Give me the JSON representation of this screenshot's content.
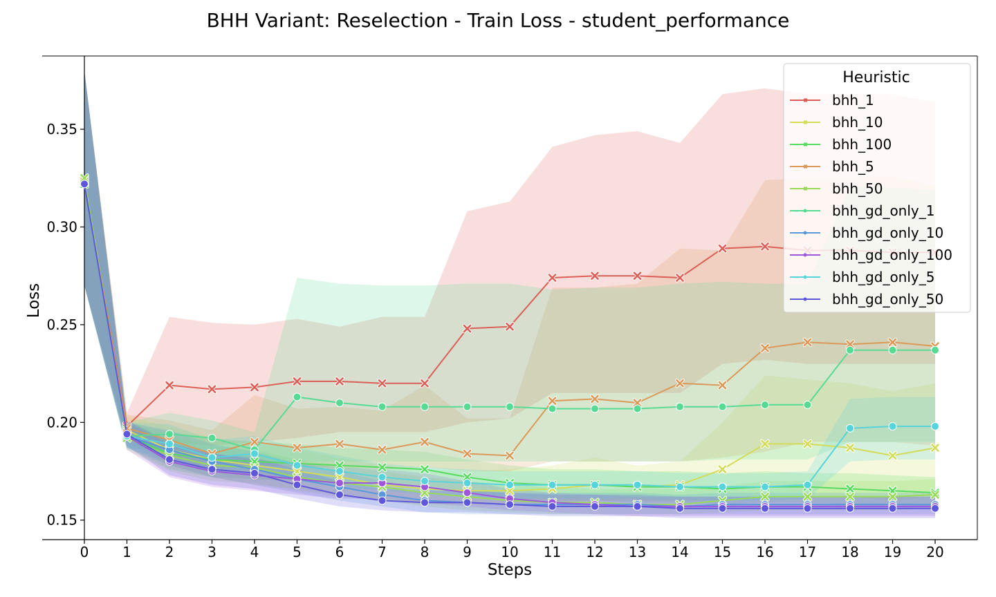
{
  "chart_data": {
    "type": "line",
    "title": "BHH Variant: Reselection - Train Loss - student_performance",
    "xlabel": "Steps",
    "ylabel": "Loss",
    "xlim": [
      -1,
      21
    ],
    "ylim": [
      0.14,
      0.3875
    ],
    "x": [
      0,
      1,
      2,
      3,
      4,
      5,
      6,
      7,
      8,
      9,
      10,
      11,
      12,
      13,
      14,
      15,
      16,
      17,
      18,
      19,
      20
    ],
    "x_ticks": [
      0,
      1,
      2,
      3,
      4,
      5,
      6,
      7,
      8,
      9,
      10,
      11,
      12,
      13,
      14,
      15,
      16,
      17,
      18,
      19,
      20
    ],
    "y_ticks": [
      0.15,
      0.2,
      0.25,
      0.3,
      0.35
    ],
    "y_tick_labels": [
      "0.15",
      "0.20",
      "0.25",
      "0.30",
      "0.35"
    ],
    "legend_title": "Heuristic",
    "legend_position": "top-right",
    "series": [
      {
        "name": "bhh_1",
        "color": "#db5f57",
        "marker": "x",
        "values": [
          0.323,
          0.198,
          0.219,
          0.217,
          0.218,
          0.221,
          0.221,
          0.22,
          0.22,
          0.248,
          0.249,
          0.274,
          0.275,
          0.275,
          0.274,
          0.289,
          0.29,
          0.288,
          0.288,
          0.287,
          0.287
        ],
        "upper": [
          0.38,
          0.205,
          0.254,
          0.251,
          0.25,
          0.253,
          0.249,
          0.254,
          0.254,
          0.308,
          0.313,
          0.341,
          0.347,
          0.349,
          0.343,
          0.368,
          0.371,
          0.368,
          0.368,
          0.368,
          0.364
        ],
        "lower": [
          0.27,
          0.192,
          0.19,
          0.188,
          0.19,
          0.192,
          0.195,
          0.195,
          0.195,
          0.2,
          0.202,
          0.215,
          0.215,
          0.215,
          0.215,
          0.23,
          0.232,
          0.23,
          0.23,
          0.23,
          0.23
        ]
      },
      {
        "name": "bhh_10",
        "color": "#d3db57",
        "marker": "x",
        "values": [
          0.324,
          0.196,
          0.186,
          0.181,
          0.178,
          0.175,
          0.172,
          0.168,
          0.166,
          0.165,
          0.165,
          0.166,
          0.168,
          0.167,
          0.168,
          0.176,
          0.189,
          0.189,
          0.187,
          0.183,
          0.187
        ],
        "upper": [
          0.38,
          0.203,
          0.198,
          0.192,
          0.189,
          0.186,
          0.182,
          0.178,
          0.176,
          0.175,
          0.176,
          0.178,
          0.182,
          0.178,
          0.18,
          0.2,
          0.224,
          0.222,
          0.22,
          0.216,
          0.22
        ],
        "lower": [
          0.27,
          0.19,
          0.178,
          0.172,
          0.168,
          0.166,
          0.163,
          0.16,
          0.158,
          0.158,
          0.158,
          0.159,
          0.16,
          0.16,
          0.16,
          0.16,
          0.162,
          0.162,
          0.162,
          0.16,
          0.162
        ]
      },
      {
        "name": "bhh_100",
        "color": "#57db5f",
        "marker": "x",
        "values": [
          0.322,
          0.193,
          0.184,
          0.181,
          0.18,
          0.179,
          0.178,
          0.177,
          0.176,
          0.172,
          0.169,
          0.168,
          0.168,
          0.167,
          0.167,
          0.166,
          0.167,
          0.167,
          0.166,
          0.165,
          0.164
        ],
        "upper": [
          0.38,
          0.2,
          0.195,
          0.192,
          0.19,
          0.189,
          0.187,
          0.186,
          0.185,
          0.181,
          0.178,
          0.176,
          0.176,
          0.175,
          0.175,
          0.174,
          0.175,
          0.174,
          0.174,
          0.173,
          0.172
        ],
        "lower": [
          0.27,
          0.187,
          0.176,
          0.172,
          0.171,
          0.17,
          0.169,
          0.168,
          0.167,
          0.164,
          0.161,
          0.16,
          0.16,
          0.159,
          0.159,
          0.158,
          0.159,
          0.159,
          0.158,
          0.158,
          0.157
        ]
      },
      {
        "name": "bhh_5",
        "color": "#db9857",
        "marker": "x",
        "values": [
          0.323,
          0.197,
          0.191,
          0.184,
          0.19,
          0.187,
          0.189,
          0.186,
          0.19,
          0.184,
          0.183,
          0.211,
          0.212,
          0.21,
          0.22,
          0.219,
          0.238,
          0.241,
          0.24,
          0.241,
          0.239
        ],
        "upper": [
          0.38,
          0.204,
          0.201,
          0.196,
          0.214,
          0.207,
          0.208,
          0.206,
          0.219,
          0.202,
          0.202,
          0.269,
          0.269,
          0.271,
          0.289,
          0.288,
          0.324,
          0.325,
          0.325,
          0.326,
          0.321
        ],
        "lower": [
          0.27,
          0.191,
          0.182,
          0.176,
          0.178,
          0.177,
          0.177,
          0.176,
          0.177,
          0.175,
          0.175,
          0.18,
          0.18,
          0.18,
          0.18,
          0.182,
          0.185,
          0.19,
          0.19,
          0.19,
          0.188
        ]
      },
      {
        "name": "bhh_50",
        "color": "#98db57",
        "marker": "x",
        "values": [
          0.325,
          0.192,
          0.183,
          0.178,
          0.177,
          0.172,
          0.169,
          0.167,
          0.164,
          0.162,
          0.16,
          0.159,
          0.159,
          0.158,
          0.158,
          0.16,
          0.162,
          0.162,
          0.162,
          0.162,
          0.163
        ],
        "upper": [
          0.38,
          0.199,
          0.193,
          0.188,
          0.186,
          0.181,
          0.178,
          0.175,
          0.172,
          0.17,
          0.168,
          0.167,
          0.166,
          0.166,
          0.166,
          0.167,
          0.17,
          0.17,
          0.17,
          0.17,
          0.171
        ],
        "lower": [
          0.27,
          0.186,
          0.175,
          0.17,
          0.169,
          0.165,
          0.162,
          0.16,
          0.157,
          0.155,
          0.154,
          0.153,
          0.153,
          0.153,
          0.153,
          0.154,
          0.155,
          0.155,
          0.155,
          0.155,
          0.156
        ]
      },
      {
        "name": "bhh_gd_only_1",
        "color": "#57db94",
        "marker": "o",
        "values": [
          0.322,
          0.193,
          0.194,
          0.192,
          0.186,
          0.213,
          0.21,
          0.208,
          0.208,
          0.208,
          0.208,
          0.207,
          0.207,
          0.207,
          0.208,
          0.208,
          0.209,
          0.209,
          0.237,
          0.237,
          0.237
        ],
        "upper": [
          0.38,
          0.2,
          0.205,
          0.201,
          0.195,
          0.274,
          0.271,
          0.27,
          0.27,
          0.271,
          0.271,
          0.268,
          0.269,
          0.269,
          0.271,
          0.272,
          0.271,
          0.271,
          0.321,
          0.32,
          0.319
        ],
        "lower": [
          0.27,
          0.187,
          0.185,
          0.183,
          0.178,
          0.18,
          0.18,
          0.18,
          0.18,
          0.18,
          0.18,
          0.18,
          0.18,
          0.18,
          0.18,
          0.181,
          0.181,
          0.181,
          0.19,
          0.19,
          0.19
        ]
      },
      {
        "name": "bhh_gd_only_10",
        "color": "#5797db",
        "marker": "o",
        "values": [
          0.322,
          0.193,
          0.186,
          0.18,
          0.176,
          0.171,
          0.167,
          0.163,
          0.16,
          0.159,
          0.158,
          0.158,
          0.158,
          0.158,
          0.157,
          0.158,
          0.158,
          0.158,
          0.158,
          0.158,
          0.158
        ],
        "upper": [
          0.38,
          0.2,
          0.196,
          0.189,
          0.185,
          0.179,
          0.175,
          0.17,
          0.166,
          0.165,
          0.164,
          0.164,
          0.164,
          0.164,
          0.163,
          0.164,
          0.164,
          0.164,
          0.164,
          0.164,
          0.164
        ],
        "lower": [
          0.27,
          0.187,
          0.178,
          0.172,
          0.168,
          0.164,
          0.16,
          0.157,
          0.154,
          0.153,
          0.153,
          0.153,
          0.153,
          0.153,
          0.153,
          0.153,
          0.153,
          0.153,
          0.153,
          0.153,
          0.153
        ]
      },
      {
        "name": "bhh_gd_only_100",
        "color": "#9e57db",
        "marker": "o",
        "values": [
          0.322,
          0.193,
          0.18,
          0.175,
          0.173,
          0.171,
          0.169,
          0.169,
          0.167,
          0.164,
          0.161,
          0.159,
          0.158,
          0.157,
          0.157,
          0.157,
          0.157,
          0.157,
          0.157,
          0.157,
          0.157
        ],
        "upper": [
          0.38,
          0.2,
          0.189,
          0.184,
          0.181,
          0.179,
          0.177,
          0.176,
          0.174,
          0.17,
          0.166,
          0.164,
          0.163,
          0.162,
          0.162,
          0.162,
          0.162,
          0.162,
          0.162,
          0.162,
          0.162
        ],
        "lower": [
          0.27,
          0.186,
          0.172,
          0.167,
          0.165,
          0.163,
          0.161,
          0.161,
          0.159,
          0.157,
          0.155,
          0.154,
          0.153,
          0.152,
          0.152,
          0.152,
          0.152,
          0.152,
          0.152,
          0.152,
          0.152
        ]
      },
      {
        "name": "bhh_gd_only_5",
        "color": "#57d3db",
        "marker": "o",
        "values": [
          0.322,
          0.193,
          0.189,
          0.182,
          0.184,
          0.178,
          0.175,
          0.172,
          0.17,
          0.169,
          0.168,
          0.168,
          0.168,
          0.168,
          0.167,
          0.167,
          0.167,
          0.168,
          0.197,
          0.198,
          0.198
        ],
        "upper": [
          0.38,
          0.2,
          0.199,
          0.191,
          0.193,
          0.187,
          0.183,
          0.179,
          0.177,
          0.176,
          0.175,
          0.175,
          0.175,
          0.175,
          0.174,
          0.174,
          0.174,
          0.175,
          0.212,
          0.213,
          0.213
        ],
        "lower": [
          0.27,
          0.187,
          0.18,
          0.174,
          0.176,
          0.17,
          0.167,
          0.165,
          0.163,
          0.162,
          0.161,
          0.161,
          0.161,
          0.161,
          0.16,
          0.16,
          0.16,
          0.161,
          0.18,
          0.181,
          0.181
        ]
      },
      {
        "name": "bhh_gd_only_50",
        "color": "#5f57db",
        "marker": "o",
        "values": [
          0.322,
          0.194,
          0.181,
          0.176,
          0.174,
          0.168,
          0.163,
          0.16,
          0.159,
          0.159,
          0.158,
          0.157,
          0.157,
          0.157,
          0.156,
          0.156,
          0.156,
          0.156,
          0.156,
          0.156,
          0.156
        ],
        "upper": [
          0.38,
          0.201,
          0.19,
          0.184,
          0.182,
          0.176,
          0.17,
          0.166,
          0.165,
          0.165,
          0.164,
          0.163,
          0.163,
          0.163,
          0.162,
          0.162,
          0.162,
          0.162,
          0.162,
          0.162,
          0.162
        ],
        "lower": [
          0.27,
          0.188,
          0.173,
          0.168,
          0.166,
          0.161,
          0.157,
          0.155,
          0.154,
          0.154,
          0.153,
          0.152,
          0.152,
          0.152,
          0.151,
          0.151,
          0.151,
          0.151,
          0.151,
          0.151,
          0.151
        ]
      }
    ]
  }
}
